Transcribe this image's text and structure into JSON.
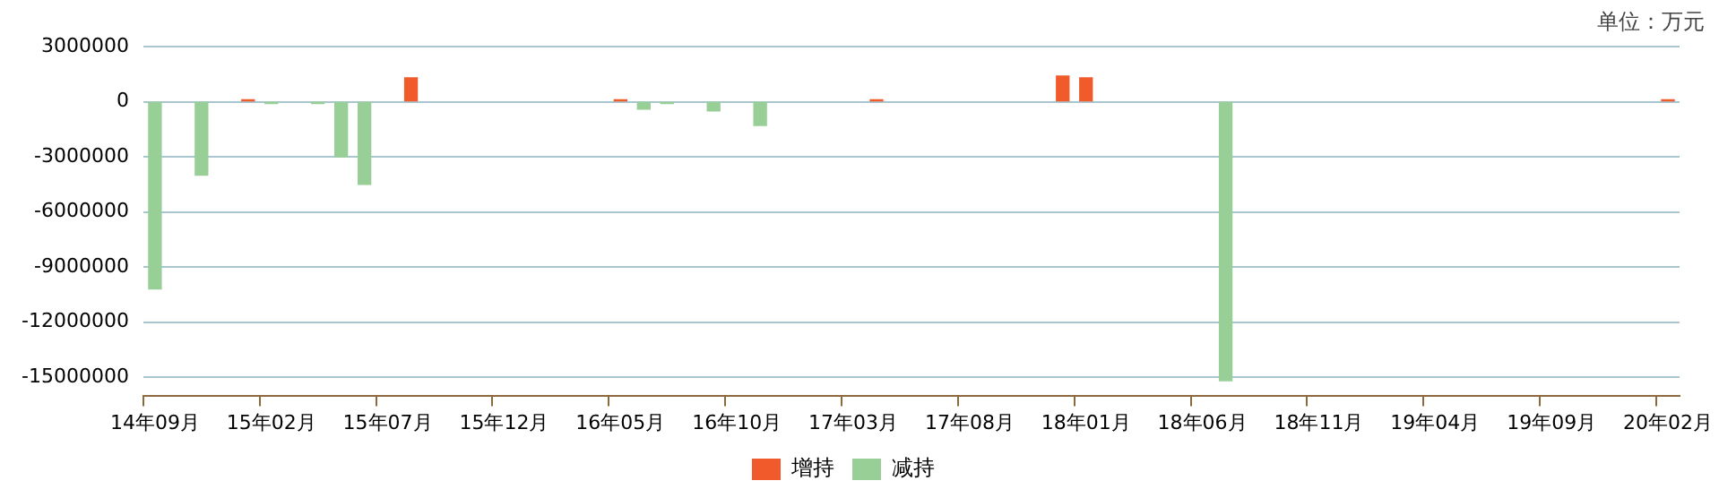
{
  "chart_data": {
    "type": "bar",
    "annotations": [
      "单位：万元"
    ],
    "categories": [
      "14年09月",
      null,
      null,
      null,
      null,
      "15年02月",
      null,
      null,
      null,
      null,
      "15年07月",
      null,
      null,
      null,
      null,
      "15年12月",
      null,
      null,
      null,
      null,
      "16年05月",
      null,
      null,
      null,
      null,
      "16年10月",
      null,
      null,
      null,
      null,
      "17年03月",
      null,
      null,
      null,
      null,
      "17年08月",
      null,
      null,
      null,
      null,
      "18年01月",
      null,
      null,
      null,
      null,
      "18年06月",
      null,
      null,
      null,
      null,
      "18年11月",
      null,
      null,
      null,
      null,
      "19年04月",
      null,
      null,
      null,
      null,
      "19年09月",
      null,
      null,
      null,
      null,
      "20年02月"
    ],
    "series": [
      {
        "name": "增持",
        "color": "#f15a2b",
        "values": [
          null,
          null,
          null,
          null,
          100000,
          null,
          null,
          null,
          null,
          null,
          null,
          1300000,
          null,
          null,
          null,
          null,
          null,
          null,
          null,
          null,
          100000,
          null,
          null,
          null,
          null,
          null,
          null,
          null,
          null,
          null,
          null,
          100000,
          null,
          null,
          null,
          null,
          null,
          null,
          null,
          1400000,
          1300000,
          null,
          null,
          null,
          null,
          null,
          null,
          null,
          null,
          null,
          null,
          null,
          null,
          null,
          null,
          null,
          null,
          null,
          null,
          null,
          null,
          null,
          null,
          null,
          null,
          100000
        ]
      },
      {
        "name": "减持",
        "color": "#97cf97",
        "values": [
          -10200000,
          null,
          -4000000,
          null,
          null,
          -100000,
          null,
          -100000,
          -3000000,
          -4500000,
          null,
          null,
          null,
          null,
          null,
          null,
          null,
          null,
          null,
          null,
          null,
          -400000,
          -100000,
          null,
          -500000,
          null,
          -1300000,
          null,
          null,
          null,
          null,
          null,
          null,
          null,
          null,
          null,
          null,
          null,
          null,
          null,
          null,
          null,
          null,
          null,
          null,
          null,
          -15200000,
          null,
          null,
          null,
          null,
          null,
          null,
          null,
          null,
          null,
          null,
          null,
          null,
          null,
          null,
          null,
          null,
          null,
          null,
          null
        ]
      }
    ],
    "ylim": [
      -16000000,
      3000000
    ],
    "yticks": [
      3000000,
      0,
      -3000000,
      -6000000,
      -9000000,
      -12000000,
      -15000000
    ],
    "grid": "y",
    "legend": "bottom"
  }
}
